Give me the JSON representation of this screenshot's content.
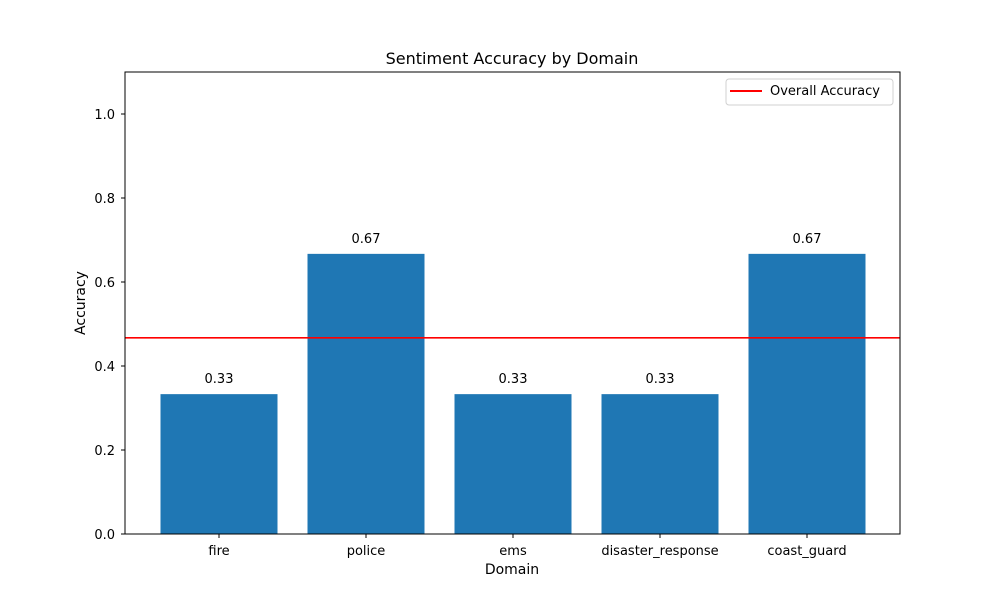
{
  "chart_data": {
    "type": "bar",
    "title": "Sentiment Accuracy by Domain",
    "xlabel": "Domain",
    "ylabel": "Accuracy",
    "categories": [
      "fire",
      "police",
      "ems",
      "disaster_response",
      "coast_guard"
    ],
    "values": [
      0.333,
      0.667,
      0.333,
      0.333,
      0.667
    ],
    "value_labels": [
      "0.33",
      "0.67",
      "0.33",
      "0.33",
      "0.67"
    ],
    "ylim": [
      0,
      1.1
    ],
    "yticks": [
      0.0,
      0.2,
      0.4,
      0.6,
      0.8,
      1.0
    ],
    "ytick_labels": [
      "0.0",
      "0.2",
      "0.4",
      "0.6",
      "0.8",
      "1.0"
    ],
    "reference_line": {
      "name": "Overall Accuracy",
      "value": 0.467,
      "color": "#ff0000"
    },
    "bar_color": "#1f77b4",
    "grid": false,
    "legend": {
      "placement": "top-right",
      "entries": [
        "Overall Accuracy"
      ]
    }
  }
}
